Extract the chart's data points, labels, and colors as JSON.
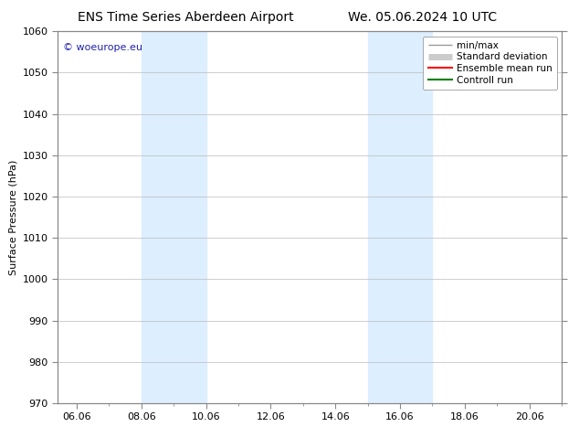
{
  "title_left": "ENS Time Series Aberdeen Airport",
  "title_right": "We. 05.06.2024 10 UTC",
  "ylabel": "Surface Pressure (hPa)",
  "ylim": [
    970,
    1060
  ],
  "yticks": [
    970,
    980,
    990,
    1000,
    1010,
    1020,
    1030,
    1040,
    1050,
    1060
  ],
  "shading_bands": [
    {
      "x_start": 8.0,
      "x_end": 9.0,
      "color": "#ddeeff"
    },
    {
      "x_start": 9.0,
      "x_end": 10.0,
      "color": "#ddeeff"
    },
    {
      "x_start": 15.0,
      "x_end": 16.0,
      "color": "#ddeeff"
    },
    {
      "x_start": 16.0,
      "x_end": 17.0,
      "color": "#ddeeff"
    }
  ],
  "watermark": "© woeurope.eu",
  "watermark_color": "#2222aa",
  "background_color": "#ffffff",
  "legend_entries": [
    {
      "label": "min/max",
      "color": "#999999",
      "linestyle": "-",
      "linewidth": 1.0
    },
    {
      "label": "Standard deviation",
      "color": "#cccccc",
      "linestyle": "-",
      "linewidth": 5
    },
    {
      "label": "Ensemble mean run",
      "color": "#ff0000",
      "linestyle": "-",
      "linewidth": 1.5
    },
    {
      "label": "Controll run",
      "color": "#008000",
      "linestyle": "-",
      "linewidth": 1.5
    }
  ],
  "title_fontsize": 10,
  "axis_fontsize": 8,
  "tick_fontsize": 8,
  "legend_fontsize": 7.5,
  "watermark_fontsize": 8,
  "xlim_left": 5.416667,
  "xlim_right": 21.0,
  "xtick_days": [
    6,
    8,
    10,
    12,
    14,
    16,
    18,
    20
  ],
  "xtick_labels": [
    "06.06",
    "08.06",
    "10.06",
    "12.06",
    "14.06",
    "16.06",
    "18.06",
    "20.06"
  ]
}
